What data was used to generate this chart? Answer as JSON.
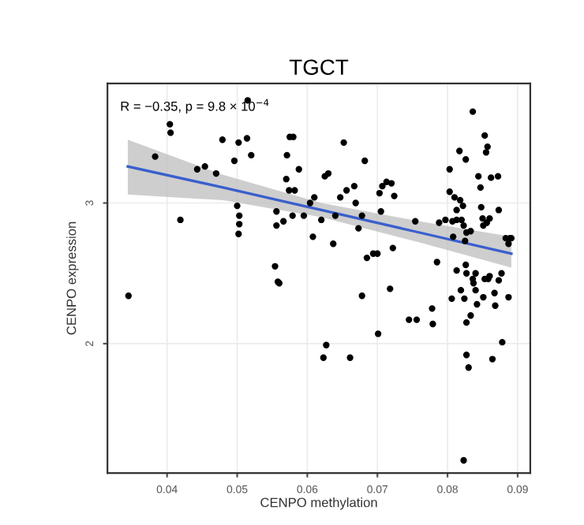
{
  "chart_data": {
    "type": "scatter",
    "title": "TGCT",
    "xlabel": "CENPO methylation",
    "ylabel": "CENPO expression",
    "annotations": [
      "R = −0.35, p = 9.8 × 10$^{−4}$"
    ],
    "xlim": [
      0.0315,
      0.0918
    ],
    "xticks": [
      0.04,
      0.05,
      0.06,
      0.07,
      0.08,
      0.09
    ],
    "ylim": [
      1.08,
      3.85
    ],
    "yticks": [
      2,
      3
    ],
    "grid": true,
    "legend": false,
    "series": [
      {
        "color": "#000000",
        "marker": "circle",
        "x": [
          0.0345,
          0.0383,
          0.0404,
          0.0405,
          0.0419,
          0.0443,
          0.0454,
          0.047,
          0.0479,
          0.0496,
          0.05,
          0.0502,
          0.0503,
          0.0503,
          0.0502,
          0.0514,
          0.0515,
          0.052,
          0.0554,
          0.0556,
          0.0556,
          0.0558,
          0.056,
          0.0566,
          0.057,
          0.0571,
          0.0575,
          0.058,
          0.0574,
          0.0582,
          0.0579,
          0.0588,
          0.0595,
          0.0604,
          0.061,
          0.0608,
          0.062,
          0.0623,
          0.0627,
          0.0625,
          0.063,
          0.0637,
          0.064,
          0.0647,
          0.0652,
          0.0656,
          0.0661,
          0.0667,
          0.0669,
          0.0673,
          0.0678,
          0.0678,
          0.0682,
          0.0685,
          0.0694,
          0.07,
          0.0701,
          0.0703,
          0.0705,
          0.0707,
          0.0713,
          0.072,
          0.0724,
          0.0722,
          0.0718,
          0.0745,
          0.0756,
          0.0754,
          0.0778,
          0.0779,
          0.0785,
          0.0788,
          0.0797,
          0.0803,
          0.0803,
          0.0807,
          0.081,
          0.0813,
          0.0808,
          0.0817,
          0.0826,
          0.0836,
          0.0818,
          0.082,
          0.0822,
          0.0825,
          0.0827,
          0.0806,
          0.0813,
          0.0819,
          0.0826,
          0.0827,
          0.0824,
          0.0827,
          0.0833,
          0.0827,
          0.083,
          0.0823,
          0.0836,
          0.0837,
          0.084,
          0.0842,
          0.084,
          0.0844,
          0.0847,
          0.0848,
          0.085,
          0.0851,
          0.0853,
          0.0857,
          0.0855,
          0.0853,
          0.0851,
          0.0856,
          0.086,
          0.0862,
          0.0858,
          0.086,
          0.0864,
          0.0867,
          0.0868,
          0.0872,
          0.0873,
          0.0873,
          0.0877,
          0.0878,
          0.0883,
          0.0889,
          0.0891,
          0.0887,
          0.0887,
          0.0823,
          0.0833,
          0.0813
        ],
        "values": [
          2.34,
          3.33,
          3.56,
          3.5,
          2.88,
          3.24,
          3.26,
          3.21,
          3.45,
          3.3,
          2.98,
          3.43,
          2.91,
          2.85,
          2.78,
          3.46,
          3.73,
          3.34,
          2.55,
          2.94,
          2.84,
          2.44,
          2.43,
          2.87,
          3.17,
          3.34,
          3.47,
          3.47,
          3.09,
          3.09,
          2.91,
          3.24,
          2.91,
          3.0,
          3.04,
          2.76,
          2.88,
          1.9,
          1.99,
          3.19,
          3.21,
          2.71,
          2.91,
          3.04,
          3.43,
          3.09,
          1.9,
          3.12,
          3.0,
          2.82,
          2.91,
          2.34,
          3.3,
          2.61,
          2.64,
          2.64,
          2.07,
          3.07,
          2.94,
          3.12,
          3.15,
          3.14,
          3.05,
          2.68,
          2.39,
          2.17,
          2.17,
          2.87,
          2.25,
          2.14,
          2.58,
          2.86,
          2.88,
          3.08,
          3.24,
          2.87,
          3.04,
          2.95,
          2.76,
          3.37,
          3.31,
          3.65,
          3.02,
          2.88,
          2.98,
          2.73,
          2.79,
          2.32,
          2.52,
          2.38,
          2.56,
          2.5,
          2.32,
          2.15,
          2.2,
          1.92,
          1.83,
          1.17,
          2.46,
          2.43,
          2.38,
          2.28,
          2.5,
          3.19,
          3.11,
          2.97,
          2.89,
          2.84,
          3.48,
          3.4,
          3.36,
          2.46,
          2.33,
          2.86,
          2.89,
          3.18,
          2.46,
          2.48,
          1.89,
          2.36,
          2.27,
          3.19,
          2.95,
          2.45,
          2.5,
          2.01,
          2.75,
          2.75,
          2.75,
          2.71,
          2.33,
          2.84,
          2.8,
          2.88
        ]
      },
      {
        "type": "line",
        "color": "#3a5fcd",
        "line_style": "solid",
        "marker": "none",
        "x": [
          0.0344,
          0.048,
          0.062,
          0.076,
          0.0891
        ],
        "values": [
          3.26,
          3.11,
          2.95,
          2.79,
          2.64
        ],
        "lower": [
          3.06,
          3.02,
          2.9,
          2.72,
          2.54
        ],
        "upper": [
          3.45,
          3.2,
          3.0,
          2.87,
          2.76
        ]
      }
    ]
  }
}
